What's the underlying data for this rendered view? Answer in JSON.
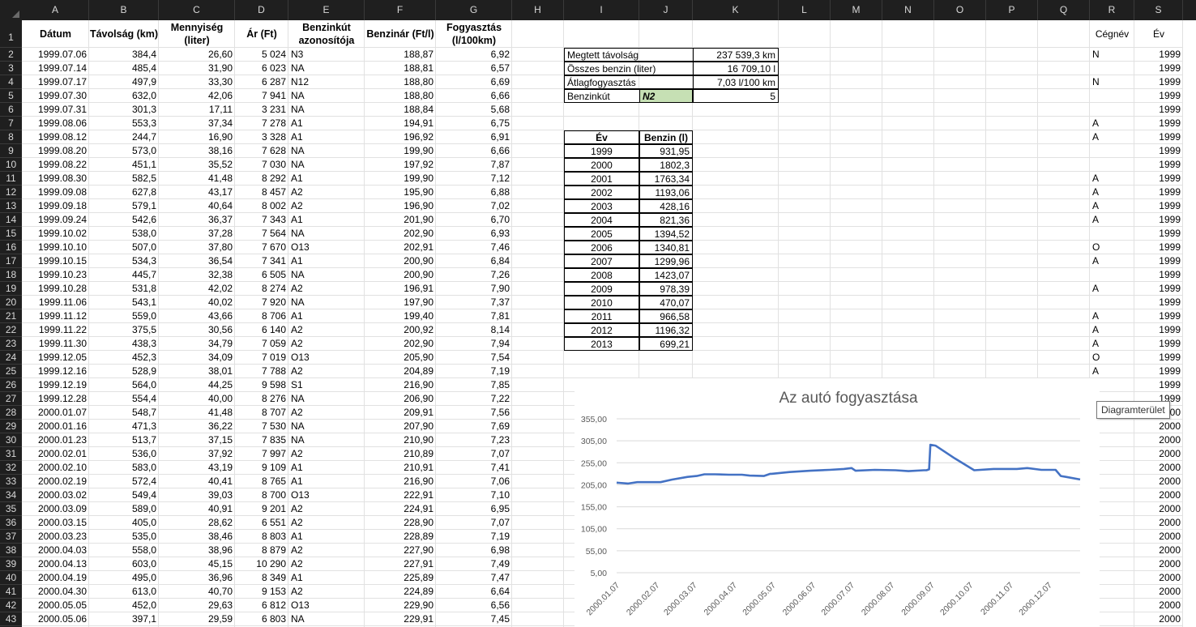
{
  "column_headers": [
    "A",
    "B",
    "C",
    "D",
    "E",
    "F",
    "G",
    "H",
    "I",
    "J",
    "K",
    "L",
    "M",
    "N",
    "O",
    "P",
    "Q",
    "R",
    "S"
  ],
  "row_headers": [
    "1",
    "2",
    "3",
    "4",
    "5",
    "6",
    "7",
    "8",
    "9",
    "10",
    "11",
    "12",
    "13",
    "14",
    "15",
    "16",
    "17",
    "18",
    "19",
    "20",
    "21",
    "22",
    "23",
    "24",
    "25",
    "26",
    "27",
    "28",
    "29",
    "30",
    "31",
    "32",
    "33",
    "34",
    "35",
    "36",
    "37",
    "38",
    "39",
    "40",
    "41",
    "42",
    "43"
  ],
  "header": {
    "datum": "Dátum",
    "tavolsag": "Távolság (km)",
    "mennyiseg": "Mennyiség (liter)",
    "ar": "Ár (Ft)",
    "benzinkut": "Benzinkút azonosítója",
    "benzinar": "Benzinár (Ft/l)",
    "fogyasztas": "Fogyasztás (l/100km)",
    "cegnev": "Cégnév",
    "ev": "Év"
  },
  "rows": [
    [
      "1999.07.06",
      "384,4",
      "26,60",
      "5 024",
      "N3",
      "188,87",
      "6,92"
    ],
    [
      "1999.07.14",
      "485,4",
      "31,90",
      "6 023",
      "NA",
      "188,81",
      "6,57"
    ],
    [
      "1999.07.17",
      "497,9",
      "33,30",
      "6 287",
      "N12",
      "188,80",
      "6,69"
    ],
    [
      "1999.07.30",
      "632,0",
      "42,06",
      "7 941",
      "NA",
      "188,80",
      "6,66"
    ],
    [
      "1999.07.31",
      "301,3",
      "17,11",
      "3 231",
      "NA",
      "188,84",
      "5,68"
    ],
    [
      "1999.08.06",
      "553,3",
      "37,34",
      "7 278",
      "A1",
      "194,91",
      "6,75"
    ],
    [
      "1999.08.12",
      "244,7",
      "16,90",
      "3 328",
      "A1",
      "196,92",
      "6,91"
    ],
    [
      "1999.08.20",
      "573,0",
      "38,16",
      "7 628",
      "NA",
      "199,90",
      "6,66"
    ],
    [
      "1999.08.22",
      "451,1",
      "35,52",
      "7 030",
      "NA",
      "197,92",
      "7,87"
    ],
    [
      "1999.08.30",
      "582,5",
      "41,48",
      "8 292",
      "A1",
      "199,90",
      "7,12"
    ],
    [
      "1999.09.08",
      "627,8",
      "43,17",
      "8 457",
      "A2",
      "195,90",
      "6,88"
    ],
    [
      "1999.09.18",
      "579,1",
      "40,64",
      "8 002",
      "A2",
      "196,90",
      "7,02"
    ],
    [
      "1999.09.24",
      "542,6",
      "36,37",
      "7 343",
      "A1",
      "201,90",
      "6,70"
    ],
    [
      "1999.10.02",
      "538,0",
      "37,28",
      "7 564",
      "NA",
      "202,90",
      "6,93"
    ],
    [
      "1999.10.10",
      "507,0",
      "37,80",
      "7 670",
      "O13",
      "202,91",
      "7,46"
    ],
    [
      "1999.10.15",
      "534,3",
      "36,54",
      "7 341",
      "A1",
      "200,90",
      "6,84"
    ],
    [
      "1999.10.23",
      "445,7",
      "32,38",
      "6 505",
      "NA",
      "200,90",
      "7,26"
    ],
    [
      "1999.10.28",
      "531,8",
      "42,02",
      "8 274",
      "A2",
      "196,91",
      "7,90"
    ],
    [
      "1999.11.06",
      "543,1",
      "40,02",
      "7 920",
      "NA",
      "197,90",
      "7,37"
    ],
    [
      "1999.11.12",
      "559,0",
      "43,66",
      "8 706",
      "A1",
      "199,40",
      "7,81"
    ],
    [
      "1999.11.22",
      "375,5",
      "30,56",
      "6 140",
      "A2",
      "200,92",
      "8,14"
    ],
    [
      "1999.11.30",
      "438,3",
      "34,79",
      "7 059",
      "A2",
      "202,90",
      "7,94"
    ],
    [
      "1999.12.05",
      "452,3",
      "34,09",
      "7 019",
      "O13",
      "205,90",
      "7,54"
    ],
    [
      "1999.12.16",
      "528,9",
      "38,01",
      "7 788",
      "A2",
      "204,89",
      "7,19"
    ],
    [
      "1999.12.19",
      "564,0",
      "44,25",
      "9 598",
      "S1",
      "216,90",
      "7,85"
    ],
    [
      "1999.12.28",
      "554,4",
      "40,00",
      "8 276",
      "NA",
      "206,90",
      "7,22"
    ],
    [
      "2000.01.07",
      "548,7",
      "41,48",
      "8 707",
      "A2",
      "209,91",
      "7,56"
    ],
    [
      "2000.01.16",
      "471,3",
      "36,22",
      "7 530",
      "NA",
      "207,90",
      "7,69"
    ],
    [
      "2000.01.23",
      "513,7",
      "37,15",
      "7 835",
      "NA",
      "210,90",
      "7,23"
    ],
    [
      "2000.02.01",
      "536,0",
      "37,92",
      "7 997",
      "A2",
      "210,89",
      "7,07"
    ],
    [
      "2000.02.10",
      "583,0",
      "43,19",
      "9 109",
      "A1",
      "210,91",
      "7,41"
    ],
    [
      "2000.02.19",
      "572,4",
      "40,41",
      "8 765",
      "A1",
      "216,90",
      "7,06"
    ],
    [
      "2000.03.02",
      "549,4",
      "39,03",
      "8 700",
      "O13",
      "222,91",
      "7,10"
    ],
    [
      "2000.03.09",
      "589,0",
      "40,91",
      "9 201",
      "A2",
      "224,91",
      "6,95"
    ],
    [
      "2000.03.15",
      "405,0",
      "28,62",
      "6 551",
      "A2",
      "228,90",
      "7,07"
    ],
    [
      "2000.03.23",
      "535,0",
      "38,46",
      "8 803",
      "A1",
      "228,89",
      "7,19"
    ],
    [
      "2000.04.03",
      "558,0",
      "38,96",
      "8 879",
      "A2",
      "227,90",
      "6,98"
    ],
    [
      "2000.04.13",
      "603,0",
      "45,15",
      "10 290",
      "A2",
      "227,91",
      "7,49"
    ],
    [
      "2000.04.19",
      "495,0",
      "36,96",
      "8 349",
      "A1",
      "225,89",
      "7,47"
    ],
    [
      "2000.04.30",
      "613,0",
      "40,70",
      "9 153",
      "A2",
      "224,89",
      "6,64"
    ],
    [
      "2000.05.05",
      "452,0",
      "29,63",
      "6 812",
      "O13",
      "229,90",
      "6,56"
    ],
    [
      "2000.05.06",
      "397,1",
      "29,59",
      "6 803",
      "NA",
      "229,91",
      "7,45"
    ]
  ],
  "col_r": [
    "N",
    "",
    "N",
    "",
    "",
    "A",
    "A",
    "",
    "",
    "A",
    "A",
    "A",
    "A",
    "",
    "O",
    "A",
    "",
    "A",
    "",
    "A",
    "A",
    "A",
    "O",
    "A",
    "S",
    "",
    "",
    "",
    "",
    "A",
    "A",
    "A",
    "O",
    "A",
    "A",
    "A",
    "A",
    "A",
    "A",
    "A",
    "O",
    ""
  ],
  "col_s": [
    "1999",
    "1999",
    "1999",
    "1999",
    "1999",
    "1999",
    "1999",
    "1999",
    "1999",
    "1999",
    "1999",
    "1999",
    "1999",
    "1999",
    "1999",
    "1999",
    "1999",
    "1999",
    "1999",
    "1999",
    "1999",
    "1999",
    "1999",
    "1999",
    "1999",
    "1999",
    "2000",
    "2000",
    "2000",
    "2000",
    "2000",
    "2000",
    "2000",
    "2000",
    "2000",
    "2000",
    "2000",
    "2000",
    "2000",
    "2000",
    "2000",
    "2000"
  ],
  "summary": {
    "tav_label": "Megtett távolság",
    "tav_value": "237 539,3 km",
    "benzin_label": "Összes benzin (liter)",
    "benzin_value": "16 709,10 l",
    "atlag_label": "Átlagfogyasztás",
    "atlag_value": "7,03 l/100 km",
    "kut_label": "Benzinkút",
    "kut_code": "N2",
    "kut_value": "5"
  },
  "yearly": {
    "h_ev": "Év",
    "h_benzin": "Benzin (l)",
    "rows": [
      [
        "1999",
        "931,95"
      ],
      [
        "2000",
        "1802,3"
      ],
      [
        "2001",
        "1763,34"
      ],
      [
        "2002",
        "1193,06"
      ],
      [
        "2003",
        "428,16"
      ],
      [
        "2004",
        "821,36"
      ],
      [
        "2005",
        "1394,52"
      ],
      [
        "2006",
        "1340,81"
      ],
      [
        "2007",
        "1299,96"
      ],
      [
        "2008",
        "1423,07"
      ],
      [
        "2009",
        "978,39"
      ],
      [
        "2010",
        "470,07"
      ],
      [
        "2011",
        "966,58"
      ],
      [
        "2012",
        "1196,32"
      ],
      [
        "2013",
        "699,21"
      ]
    ]
  },
  "tooltip": "Diagramterület",
  "colors": {
    "series": "#4472c4",
    "selected_cell": "#c6e0b4",
    "header_bg": "#1f1f1f"
  },
  "chart_data": {
    "type": "line",
    "title": "Az autó fogyasztása",
    "ylim": [
      5,
      355
    ],
    "yticks": [
      "355,00",
      "305,00",
      "255,00",
      "205,00",
      "155,00",
      "105,00",
      "55,00",
      "5,00"
    ],
    "x_labels": [
      "2000.01.07",
      "2000.02.07",
      "2000.03.07",
      "2000.04.07",
      "2000.05.07",
      "2000.06.07",
      "2000.07.07",
      "2000.08.07",
      "2000.09.07",
      "2000.10.07",
      "2000.11.07",
      "2000.12.07"
    ],
    "x": [
      "2000.01.07",
      "2000.01.16",
      "2000.01.23",
      "2000.02.01",
      "2000.02.10",
      "2000.02.19",
      "2000.03.02",
      "2000.03.09",
      "2000.03.15",
      "2000.03.23",
      "2000.04.03",
      "2000.04.13",
      "2000.04.19",
      "2000.04.30",
      "2000.05.05",
      "2000.05.06",
      "2000.05.20",
      "2000.06.05",
      "2000.06.20",
      "2000.07.01",
      "2000.07.07",
      "2000.07.10",
      "2000.07.25",
      "2000.08.10",
      "2000.08.20",
      "2000.09.01",
      "2000.09.03",
      "2000.09.05",
      "2000.09.06",
      "2000.09.10",
      "2000.09.25",
      "2000.10.10",
      "2000.10.25",
      "2000.11.05",
      "2000.11.12",
      "2000.11.20",
      "2000.12.01",
      "2000.12.12",
      "2000.12.16",
      "2000.12.20",
      "2000.12.31"
    ],
    "y": [
      209.91,
      207.9,
      210.9,
      210.89,
      210.91,
      216.9,
      222.91,
      224.91,
      228.9,
      228.89,
      227.9,
      227.91,
      225.89,
      224.89,
      229.9,
      229.91,
      234,
      237,
      239,
      241,
      243,
      237,
      239,
      238,
      236,
      238,
      238,
      240,
      296,
      294,
      265,
      238,
      241,
      241,
      241,
      243,
      239,
      239,
      225,
      223,
      217
    ]
  }
}
